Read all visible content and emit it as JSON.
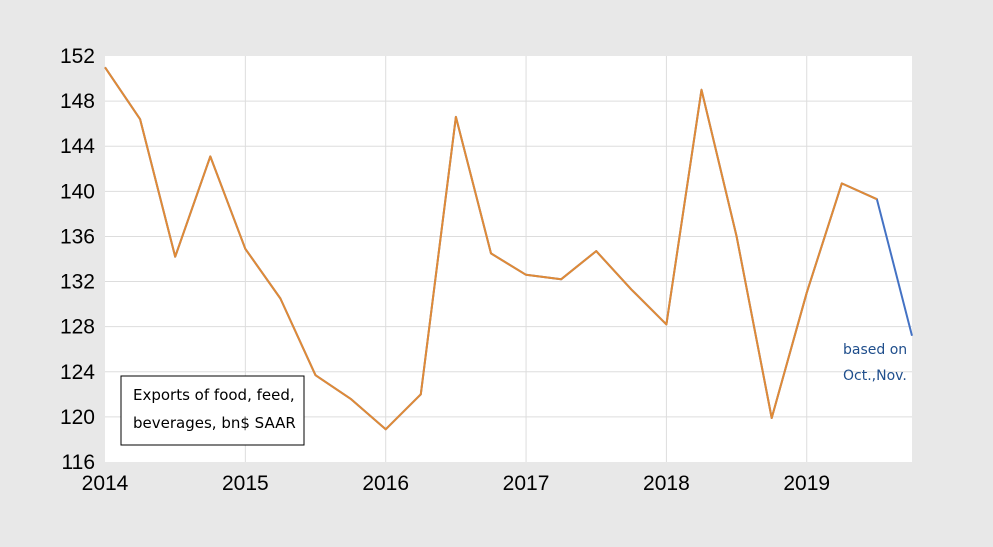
{
  "chart_data": {
    "type": "line",
    "title": "",
    "xlabel": "",
    "ylabel": "",
    "xlim": [
      2014,
      2019.75
    ],
    "ylim": [
      116,
      152
    ],
    "x_ticks": [
      "2014",
      "2015",
      "2016",
      "2017",
      "2018",
      "2019"
    ],
    "y_ticks": [
      "116",
      "120",
      "124",
      "128",
      "132",
      "136",
      "140",
      "144",
      "148",
      "152"
    ],
    "grid": true,
    "legend_box": {
      "lines": [
        "Exports of food, feed,",
        "beverages, bn$ SAAR"
      ],
      "placement": "bottom-left"
    },
    "annotation": {
      "lines": [
        "based on",
        "Oct.,Nov."
      ],
      "placement": "lower-right"
    },
    "series": [
      {
        "color": "#4472c4",
        "x": [
          2014.0,
          2014.25,
          2014.5,
          2014.75,
          2015.0,
          2015.25,
          2015.5,
          2015.75,
          2016.0,
          2016.25,
          2016.5,
          2016.75,
          2017.0,
          2017.25,
          2017.5,
          2017.75,
          2018.0,
          2018.25,
          2018.5,
          2018.75,
          2019.0,
          2019.25,
          2019.5,
          2019.75
        ],
        "values": [
          151.0,
          146.4,
          134.2,
          143.1,
          134.9,
          130.5,
          123.7,
          121.6,
          118.9,
          122.0,
          146.6,
          134.5,
          132.6,
          132.2,
          134.7,
          131.3,
          128.2,
          149.0,
          136.0,
          119.9,
          131.0,
          140.7,
          139.3,
          127.2
        ]
      },
      {
        "color": "#e08a36",
        "x": [
          2014.0,
          2014.25,
          2014.5,
          2014.75,
          2015.0,
          2015.25,
          2015.5,
          2015.75,
          2016.0,
          2016.25,
          2016.5,
          2016.75,
          2017.0,
          2017.25,
          2017.5,
          2017.75,
          2018.0,
          2018.25,
          2018.5,
          2018.75,
          2019.0,
          2019.25,
          2019.5
        ],
        "values": [
          151.0,
          146.4,
          134.2,
          143.1,
          134.9,
          130.5,
          123.7,
          121.6,
          118.9,
          122.0,
          146.6,
          134.5,
          132.6,
          132.2,
          134.7,
          131.3,
          128.2,
          149.0,
          136.0,
          119.9,
          131.0,
          140.7,
          139.3
        ]
      }
    ]
  }
}
